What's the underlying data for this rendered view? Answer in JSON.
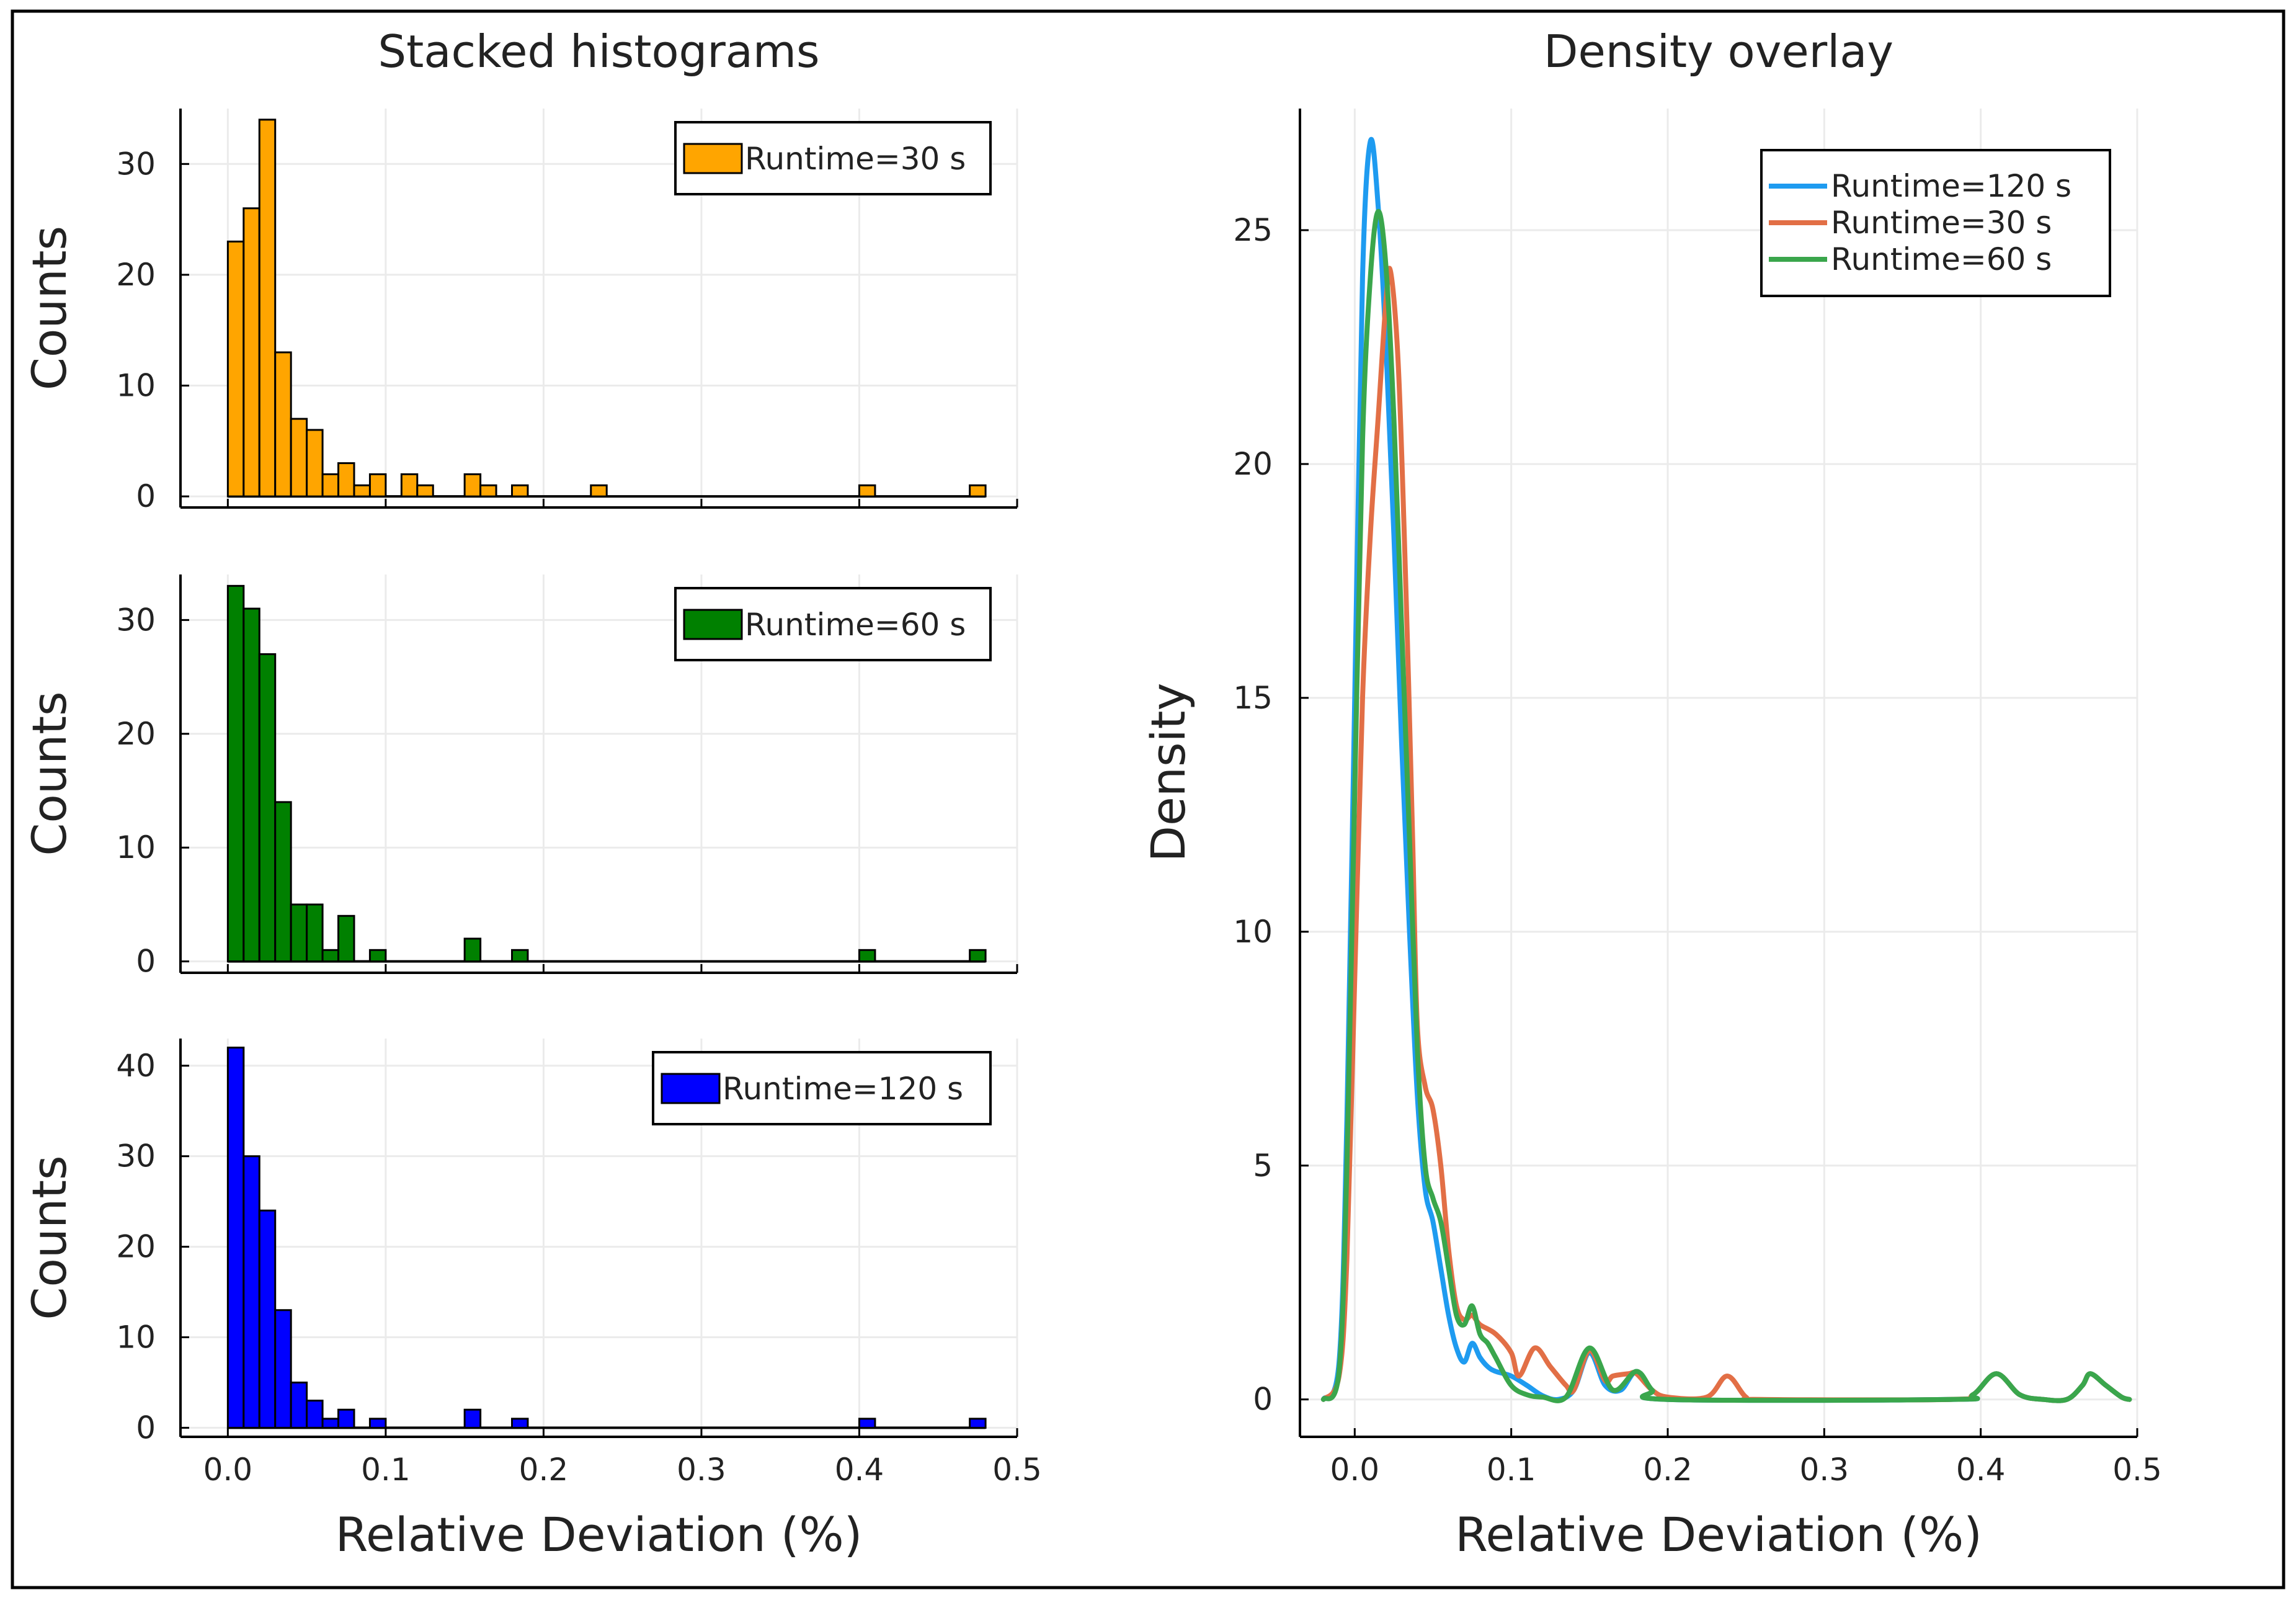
{
  "chart_data": [
    {
      "type": "bar",
      "subtype": "stacked-histograms",
      "title": "Stacked histograms",
      "xlabel": "Relative Deviation (%)",
      "xlim": [
        -0.03,
        0.5
      ],
      "xticks": [
        "0.0",
        "0.1",
        "0.2",
        "0.3",
        "0.4",
        "0.5"
      ],
      "bin_width": 0.01,
      "panels": [
        {
          "ylabel": "Counts",
          "legend": "Runtime=30 s",
          "color": "#FFA500",
          "ylim": [
            -1,
            35
          ],
          "yticks": [
            "0",
            "10",
            "20",
            "30"
          ],
          "bins": [
            [
              0.0,
              23
            ],
            [
              0.01,
              26
            ],
            [
              0.02,
              34
            ],
            [
              0.03,
              13
            ],
            [
              0.04,
              7
            ],
            [
              0.05,
              6
            ],
            [
              0.06,
              2
            ],
            [
              0.07,
              3
            ],
            [
              0.08,
              1
            ],
            [
              0.09,
              2
            ],
            [
              0.11,
              2
            ],
            [
              0.12,
              1
            ],
            [
              0.15,
              2
            ],
            [
              0.16,
              1
            ],
            [
              0.18,
              1
            ],
            [
              0.23,
              1
            ],
            [
              0.4,
              1
            ],
            [
              0.47,
              1
            ]
          ]
        },
        {
          "ylabel": "Counts",
          "legend": "Runtime=60 s",
          "color": "#008000",
          "ylim": [
            -1,
            34
          ],
          "yticks": [
            "0",
            "10",
            "20",
            "30"
          ],
          "bins": [
            [
              0.0,
              33
            ],
            [
              0.01,
              31
            ],
            [
              0.02,
              27
            ],
            [
              0.03,
              14
            ],
            [
              0.04,
              5
            ],
            [
              0.05,
              5
            ],
            [
              0.06,
              1
            ],
            [
              0.07,
              4
            ],
            [
              0.09,
              1
            ],
            [
              0.15,
              2
            ],
            [
              0.18,
              1
            ],
            [
              0.4,
              1
            ],
            [
              0.47,
              1
            ]
          ]
        },
        {
          "ylabel": "Counts",
          "legend": "Runtime=120 s",
          "color": "#0000FF",
          "ylim": [
            -1,
            43
          ],
          "yticks": [
            "0",
            "10",
            "20",
            "30",
            "40"
          ],
          "bins": [
            [
              0.0,
              42
            ],
            [
              0.01,
              30
            ],
            [
              0.02,
              24
            ],
            [
              0.03,
              13
            ],
            [
              0.04,
              5
            ],
            [
              0.05,
              3
            ],
            [
              0.06,
              1
            ],
            [
              0.07,
              2
            ],
            [
              0.09,
              1
            ],
            [
              0.15,
              2
            ],
            [
              0.18,
              1
            ],
            [
              0.4,
              1
            ],
            [
              0.47,
              1
            ]
          ]
        }
      ]
    },
    {
      "type": "line",
      "subtype": "density",
      "title": "Density overlay",
      "xlabel": "Relative Deviation (%)",
      "ylabel": "Density",
      "xlim": [
        -0.035,
        0.5
      ],
      "ylim": [
        -0.8,
        27.6
      ],
      "xticks": [
        "0.0",
        "0.1",
        "0.2",
        "0.3",
        "0.4",
        "0.5"
      ],
      "yticks": [
        "0",
        "5",
        "10",
        "15",
        "20",
        "25"
      ],
      "legend_position": "top-right",
      "series": [
        {
          "name": "Runtime=120 s",
          "color": "#1E9BF0",
          "points": [
            [
              -0.02,
              0
            ],
            [
              -0.01,
              0.8
            ],
            [
              -0.005,
              6
            ],
            [
              0.0,
              15
            ],
            [
              0.005,
              24
            ],
            [
              0.01,
              26.9
            ],
            [
              0.015,
              25.5
            ],
            [
              0.02,
              22.5
            ],
            [
              0.025,
              18.5
            ],
            [
              0.03,
              14
            ],
            [
              0.035,
              10
            ],
            [
              0.04,
              6.5
            ],
            [
              0.045,
              4.5
            ],
            [
              0.05,
              3.8
            ],
            [
              0.055,
              2.8
            ],
            [
              0.06,
              1.8
            ],
            [
              0.065,
              1.1
            ],
            [
              0.07,
              0.8
            ],
            [
              0.075,
              1.2
            ],
            [
              0.08,
              0.9
            ],
            [
              0.085,
              0.7
            ],
            [
              0.09,
              0.6
            ],
            [
              0.1,
              0.5
            ],
            [
              0.11,
              0.3
            ],
            [
              0.12,
              0.08
            ],
            [
              0.13,
              0
            ],
            [
              0.14,
              0.2
            ],
            [
              0.15,
              1.0
            ],
            [
              0.16,
              0.3
            ],
            [
              0.17,
              0.2
            ],
            [
              0.18,
              0.6
            ],
            [
              0.19,
              0.2
            ],
            [
              0.2,
              0
            ],
            [
              0.38,
              0
            ],
            [
              0.395,
              0.1
            ],
            [
              0.41,
              0.55
            ],
            [
              0.425,
              0.1
            ],
            [
              0.44,
              0
            ],
            [
              0.455,
              0
            ],
            [
              0.465,
              0.3
            ],
            [
              0.47,
              0.55
            ],
            [
              0.48,
              0.3
            ],
            [
              0.49,
              0.05
            ],
            [
              0.495,
              0
            ]
          ]
        },
        {
          "name": "Runtime=30 s",
          "color": "#E26F46",
          "points": [
            [
              -0.02,
              0
            ],
            [
              -0.01,
              0.5
            ],
            [
              -0.005,
              3
            ],
            [
              0.0,
              9
            ],
            [
              0.005,
              15
            ],
            [
              0.01,
              18.5
            ],
            [
              0.015,
              21
            ],
            [
              0.02,
              23.5
            ],
            [
              0.023,
              24.1
            ],
            [
              0.028,
              22
            ],
            [
              0.033,
              17
            ],
            [
              0.037,
              12
            ],
            [
              0.04,
              8
            ],
            [
              0.045,
              6.7
            ],
            [
              0.05,
              6.2
            ],
            [
              0.055,
              5.0
            ],
            [
              0.06,
              3.2
            ],
            [
              0.065,
              2.0
            ],
            [
              0.07,
              1.7
            ],
            [
              0.075,
              1.8
            ],
            [
              0.08,
              1.6
            ],
            [
              0.09,
              1.4
            ],
            [
              0.1,
              1.0
            ],
            [
              0.105,
              0.5
            ],
            [
              0.115,
              1.1
            ],
            [
              0.125,
              0.7
            ],
            [
              0.135,
              0.3
            ],
            [
              0.14,
              0.2
            ],
            [
              0.15,
              1.05
            ],
            [
              0.16,
              0.4
            ],
            [
              0.165,
              0.5
            ],
            [
              0.175,
              0.55
            ],
            [
              0.18,
              0.55
            ],
            [
              0.19,
              0.2
            ],
            [
              0.2,
              0.05
            ],
            [
              0.225,
              0.05
            ],
            [
              0.238,
              0.5
            ],
            [
              0.25,
              0.05
            ],
            [
              0.26,
              0
            ],
            [
              0.38,
              0
            ],
            [
              0.395,
              0.1
            ],
            [
              0.41,
              0.55
            ],
            [
              0.425,
              0.1
            ],
            [
              0.44,
              0
            ],
            [
              0.455,
              0
            ],
            [
              0.465,
              0.3
            ],
            [
              0.47,
              0.55
            ],
            [
              0.48,
              0.3
            ],
            [
              0.49,
              0.05
            ],
            [
              0.495,
              0
            ]
          ]
        },
        {
          "name": "Runtime=60 s",
          "color": "#3AA64C",
          "points": [
            [
              -0.02,
              0
            ],
            [
              -0.01,
              0.6
            ],
            [
              -0.005,
              5
            ],
            [
              0.0,
              13
            ],
            [
              0.005,
              20.5
            ],
            [
              0.01,
              24
            ],
            [
              0.015,
              25.4
            ],
            [
              0.02,
              24.2
            ],
            [
              0.025,
              21
            ],
            [
              0.03,
              16.5
            ],
            [
              0.035,
              12
            ],
            [
              0.04,
              7.5
            ],
            [
              0.045,
              5.0
            ],
            [
              0.05,
              4.3
            ],
            [
              0.055,
              3.8
            ],
            [
              0.06,
              2.8
            ],
            [
              0.065,
              1.8
            ],
            [
              0.07,
              1.6
            ],
            [
              0.075,
              2.0
            ],
            [
              0.08,
              1.4
            ],
            [
              0.085,
              1.2
            ],
            [
              0.09,
              0.9
            ],
            [
              0.1,
              0.3
            ],
            [
              0.11,
              0.1
            ],
            [
              0.12,
              0.05
            ],
            [
              0.135,
              0.05
            ],
            [
              0.15,
              1.1
            ],
            [
              0.165,
              0.2
            ],
            [
              0.18,
              0.6
            ],
            [
              0.19,
              0.2
            ],
            [
              0.2,
              0
            ],
            [
              0.38,
              0
            ],
            [
              0.395,
              0.1
            ],
            [
              0.41,
              0.55
            ],
            [
              0.425,
              0.1
            ],
            [
              0.44,
              0
            ],
            [
              0.455,
              0
            ],
            [
              0.465,
              0.3
            ],
            [
              0.47,
              0.55
            ],
            [
              0.48,
              0.3
            ],
            [
              0.49,
              0.05
            ],
            [
              0.495,
              0
            ]
          ]
        }
      ]
    }
  ]
}
